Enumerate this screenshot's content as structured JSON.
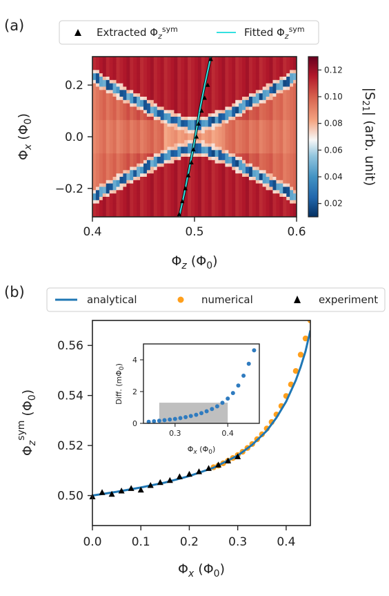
{
  "panel_a_label": "(a)",
  "panel_b_label": "(b)",
  "chart_data": [
    {
      "type": "heatmap",
      "panel": "(a)",
      "xlabel": "Φ_z (Φ_0)",
      "ylabel": "Φ_x (Φ_0)",
      "xlim": [
        0.4,
        0.6
      ],
      "ylim": [
        -0.31,
        0.31
      ],
      "xticks": [
        "0.4",
        "0.5",
        "0.6"
      ],
      "yticks": [
        "0.2",
        "0.0",
        "−0.2"
      ],
      "colorbar": {
        "label": "|S_21| (arb. unit)",
        "range": [
          0.01,
          0.13
        ],
        "ticks": [
          "0.12",
          "0.10",
          "0.08",
          "0.06",
          "0.04",
          "0.02"
        ],
        "colormap": "RdBu_r"
      },
      "legend": [
        "Extracted Φ_z^sym",
        "Fitted Φ_z^sym"
      ],
      "legend_placement": "top",
      "series": [
        {
          "name": "Extracted Φ_z^sym",
          "marker": "triangle",
          "color": "#000000",
          "x": [
            0.485,
            0.488,
            0.491,
            0.494,
            0.497,
            0.499,
            0.502,
            0.504,
            0.507,
            0.51,
            0.513,
            0.516
          ],
          "y": [
            -0.3,
            -0.25,
            -0.2,
            -0.15,
            -0.1,
            -0.05,
            0.0,
            0.05,
            0.1,
            0.15,
            0.2,
            0.3
          ]
        },
        {
          "name": "Fitted Φ_z^sym",
          "line": true,
          "color": "#33e0e0",
          "x": [
            0.485,
            0.49,
            0.495,
            0.499,
            0.502,
            0.505,
            0.51,
            0.516
          ],
          "y": [
            -0.31,
            -0.22,
            -0.12,
            -0.04,
            0.03,
            0.1,
            0.2,
            0.31
          ]
        }
      ]
    },
    {
      "type": "line",
      "panel": "(b)",
      "xlabel": "Φ_x (Φ_0)",
      "ylabel": "Φ_z^sym (Φ_0)",
      "xlim": [
        0.0,
        0.45
      ],
      "ylim": [
        0.488,
        0.57
      ],
      "xticks": [
        "0.0",
        "0.1",
        "0.2",
        "0.3",
        "0.4"
      ],
      "yticks": [
        "0.50",
        "0.52",
        "0.54",
        "0.56"
      ],
      "legend": [
        "analytical",
        "numerical",
        "experiment"
      ],
      "legend_placement": "top",
      "series": [
        {
          "name": "analytical",
          "color": "#1f77b4",
          "x": [
            0.0,
            0.05,
            0.1,
            0.15,
            0.2,
            0.25,
            0.3,
            0.33,
            0.36,
            0.38,
            0.4,
            0.42,
            0.43,
            0.44,
            0.45
          ],
          "y": [
            0.5,
            0.5015,
            0.5032,
            0.5052,
            0.5078,
            0.5111,
            0.516,
            0.5203,
            0.5259,
            0.5311,
            0.5376,
            0.5461,
            0.5515,
            0.5577,
            0.566
          ]
        },
        {
          "name": "numerical",
          "color": "#ff9f1c",
          "x": [
            0.25,
            0.26,
            0.27,
            0.28,
            0.29,
            0.3,
            0.31,
            0.32,
            0.33,
            0.34,
            0.35,
            0.36,
            0.37,
            0.38,
            0.39,
            0.4,
            0.41,
            0.42,
            0.43,
            0.44,
            0.45
          ],
          "y": [
            0.5113,
            0.512,
            0.5129,
            0.5139,
            0.515,
            0.5162,
            0.5175,
            0.519,
            0.5206,
            0.5225,
            0.5245,
            0.5268,
            0.5294,
            0.5324,
            0.5358,
            0.5398,
            0.5444,
            0.5498,
            0.5563,
            0.5628,
            0.57
          ]
        },
        {
          "name": "experiment",
          "color": "#000000",
          "marker": "triangle",
          "x": [
            0.0,
            0.02,
            0.04,
            0.06,
            0.08,
            0.1,
            0.12,
            0.14,
            0.16,
            0.18,
            0.2,
            0.22,
            0.24,
            0.26,
            0.28,
            0.3
          ],
          "y": [
            0.4995,
            0.5012,
            0.5005,
            0.5018,
            0.5028,
            0.5022,
            0.504,
            0.5052,
            0.506,
            0.5075,
            0.5085,
            0.5095,
            0.5108,
            0.5122,
            0.5138,
            0.5155
          ]
        }
      ],
      "inset": {
        "type": "scatter",
        "xlabel": "Φ_x (Φ_0)",
        "ylabel": "Diff. (mΦ_0)",
        "xlim": [
          0.24,
          0.46
        ],
        "ylim": [
          0,
          5
        ],
        "xticks": [
          "0.3",
          "0.4"
        ],
        "yticks": [
          "0",
          "2",
          "4"
        ],
        "color": "#2f7bbf",
        "shaded_region": {
          "x": [
            0.27,
            0.4
          ],
          "y": [
            0,
            1.3
          ],
          "color": "#aaaaaa"
        },
        "x": [
          0.25,
          0.26,
          0.27,
          0.28,
          0.29,
          0.3,
          0.31,
          0.32,
          0.33,
          0.34,
          0.35,
          0.36,
          0.37,
          0.38,
          0.39,
          0.4,
          0.41,
          0.42,
          0.43,
          0.44,
          0.45
        ],
        "y": [
          0.1,
          0.13,
          0.16,
          0.2,
          0.24,
          0.28,
          0.33,
          0.39,
          0.46,
          0.54,
          0.64,
          0.76,
          0.9,
          1.07,
          1.29,
          1.56,
          1.91,
          2.38,
          3.0,
          3.75,
          4.6
        ]
      }
    }
  ]
}
